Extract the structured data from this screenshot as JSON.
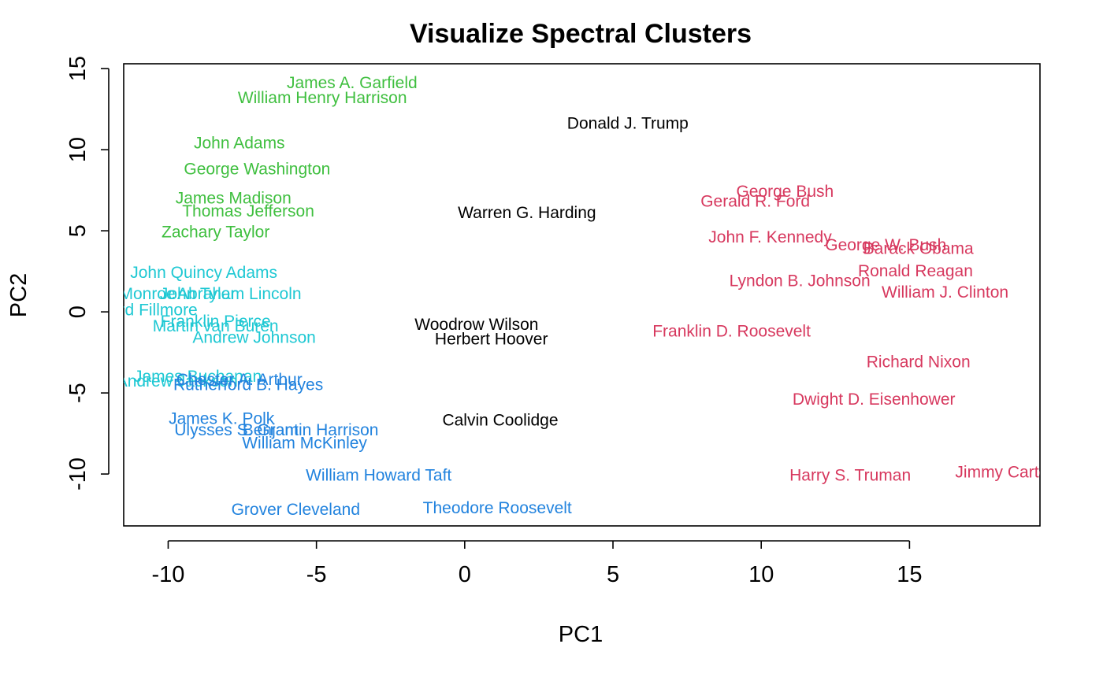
{
  "chart_data": {
    "type": "scatter",
    "title": "Visualize Spectral Clusters",
    "xlabel": "PC1",
    "ylabel": "PC2",
    "xlim": [
      -11.5,
      19.4
    ],
    "ylim": [
      -13.2,
      15.3
    ],
    "x_ticks": [
      -10,
      -5,
      0,
      5,
      10,
      15
    ],
    "x_tick_labels": [
      "-10",
      "-5",
      "0",
      "5",
      "10",
      "15"
    ],
    "y_ticks": [
      -10,
      -5,
      0,
      5,
      10,
      15
    ],
    "y_tick_labels": [
      "-10",
      "-5",
      "0",
      "5",
      "10",
      "15"
    ],
    "grid": false,
    "legend": "none",
    "cluster_colors": {
      "1": "#3fbf3f",
      "2": "#1ec8d3",
      "3": "#2283de",
      "4": "#000000",
      "5": "#d7385e"
    },
    "points": [
      {
        "label": "James A. Garfield",
        "x": -3.8,
        "y": 14.1,
        "cluster": 1
      },
      {
        "label": "William Henry Harrison",
        "x": -4.8,
        "y": 13.2,
        "cluster": 1
      },
      {
        "label": "John Adams",
        "x": -7.6,
        "y": 10.4,
        "cluster": 1
      },
      {
        "label": "George Washington",
        "x": -7.0,
        "y": 8.8,
        "cluster": 1
      },
      {
        "label": "James Madison",
        "x": -7.8,
        "y": 7.0,
        "cluster": 1
      },
      {
        "label": "Thomas Jefferson",
        "x": -7.3,
        "y": 6.2,
        "cluster": 1
      },
      {
        "label": "Zachary Taylor",
        "x": -8.4,
        "y": 4.9,
        "cluster": 1
      },
      {
        "label": "John Quincy Adams",
        "x": -8.8,
        "y": 2.4,
        "cluster": 2
      },
      {
        "label": "James Monroe",
        "x": -11.6,
        "y": 1.1,
        "cluster": 2
      },
      {
        "label": "John Tyler",
        "x": -9.0,
        "y": 1.1,
        "cluster": 2
      },
      {
        "label": "Abraham Lincoln",
        "x": -7.6,
        "y": 1.1,
        "cluster": 2
      },
      {
        "label": "Millard Fillmore",
        "x": -10.9,
        "y": 0.1,
        "cluster": 2
      },
      {
        "label": "Franklin Pierce",
        "x": -8.4,
        "y": -0.6,
        "cluster": 2
      },
      {
        "label": "Martin van Buren",
        "x": -8.4,
        "y": -0.9,
        "cluster": 2
      },
      {
        "label": "Andrew Johnson",
        "x": -7.1,
        "y": -1.6,
        "cluster": 2
      },
      {
        "label": "James Buchanan",
        "x": -9.0,
        "y": -4.0,
        "cluster": 2
      },
      {
        "label": "Andrew Jackson",
        "x": -9.7,
        "y": -4.3,
        "cluster": 2
      },
      {
        "label": "Chester A. Arthur",
        "x": -7.6,
        "y": -4.2,
        "cluster": 3
      },
      {
        "label": "Rutherford B. Hayes",
        "x": -7.3,
        "y": -4.5,
        "cluster": 3
      },
      {
        "label": "James K. Polk",
        "x": -8.2,
        "y": -6.6,
        "cluster": 3
      },
      {
        "label": "Ulysses S. Grant",
        "x": -7.7,
        "y": -7.3,
        "cluster": 3
      },
      {
        "label": "Benjamin Harrison",
        "x": -5.2,
        "y": -7.3,
        "cluster": 3
      },
      {
        "label": "William McKinley",
        "x": -5.4,
        "y": -8.1,
        "cluster": 3
      },
      {
        "label": "William Howard Taft",
        "x": -2.9,
        "y": -10.1,
        "cluster": 3
      },
      {
        "label": "Grover Cleveland",
        "x": -5.7,
        "y": -12.2,
        "cluster": 3
      },
      {
        "label": "Theodore Roosevelt",
        "x": 1.1,
        "y": -12.1,
        "cluster": 3
      },
      {
        "label": "Donald J. Trump",
        "x": 5.5,
        "y": 11.6,
        "cluster": 4
      },
      {
        "label": "Warren G. Harding",
        "x": 2.1,
        "y": 6.1,
        "cluster": 4
      },
      {
        "label": "Woodrow Wilson",
        "x": 0.4,
        "y": -0.8,
        "cluster": 4
      },
      {
        "label": "Herbert Hoover",
        "x": 0.9,
        "y": -1.7,
        "cluster": 4
      },
      {
        "label": "Calvin Coolidge",
        "x": 1.2,
        "y": -6.7,
        "cluster": 4
      },
      {
        "label": "George Bush",
        "x": 10.8,
        "y": 7.4,
        "cluster": 5
      },
      {
        "label": "Gerald R. Ford",
        "x": 9.8,
        "y": 6.8,
        "cluster": 5
      },
      {
        "label": "John F. Kennedy",
        "x": 10.3,
        "y": 4.6,
        "cluster": 5
      },
      {
        "label": "George W. Bush",
        "x": 14.2,
        "y": 4.1,
        "cluster": 5
      },
      {
        "label": "Barack Obama",
        "x": 15.3,
        "y": 3.9,
        "cluster": 5
      },
      {
        "label": "Ronald Reagan",
        "x": 15.2,
        "y": 2.5,
        "cluster": 5
      },
      {
        "label": "Lyndon B. Johnson",
        "x": 11.3,
        "y": 1.9,
        "cluster": 5
      },
      {
        "label": "William J. Clinton",
        "x": 16.2,
        "y": 1.2,
        "cluster": 5
      },
      {
        "label": "Franklin D. Roosevelt",
        "x": 9.0,
        "y": -1.2,
        "cluster": 5
      },
      {
        "label": "Richard Nixon",
        "x": 15.3,
        "y": -3.1,
        "cluster": 5
      },
      {
        "label": "Dwight D. Eisenhower",
        "x": 13.8,
        "y": -5.4,
        "cluster": 5
      },
      {
        "label": "Harry S. Truman",
        "x": 13.0,
        "y": -10.1,
        "cluster": 5
      },
      {
        "label": "Jimmy Carter",
        "x": 18.2,
        "y": -9.9,
        "cluster": 5
      }
    ]
  }
}
